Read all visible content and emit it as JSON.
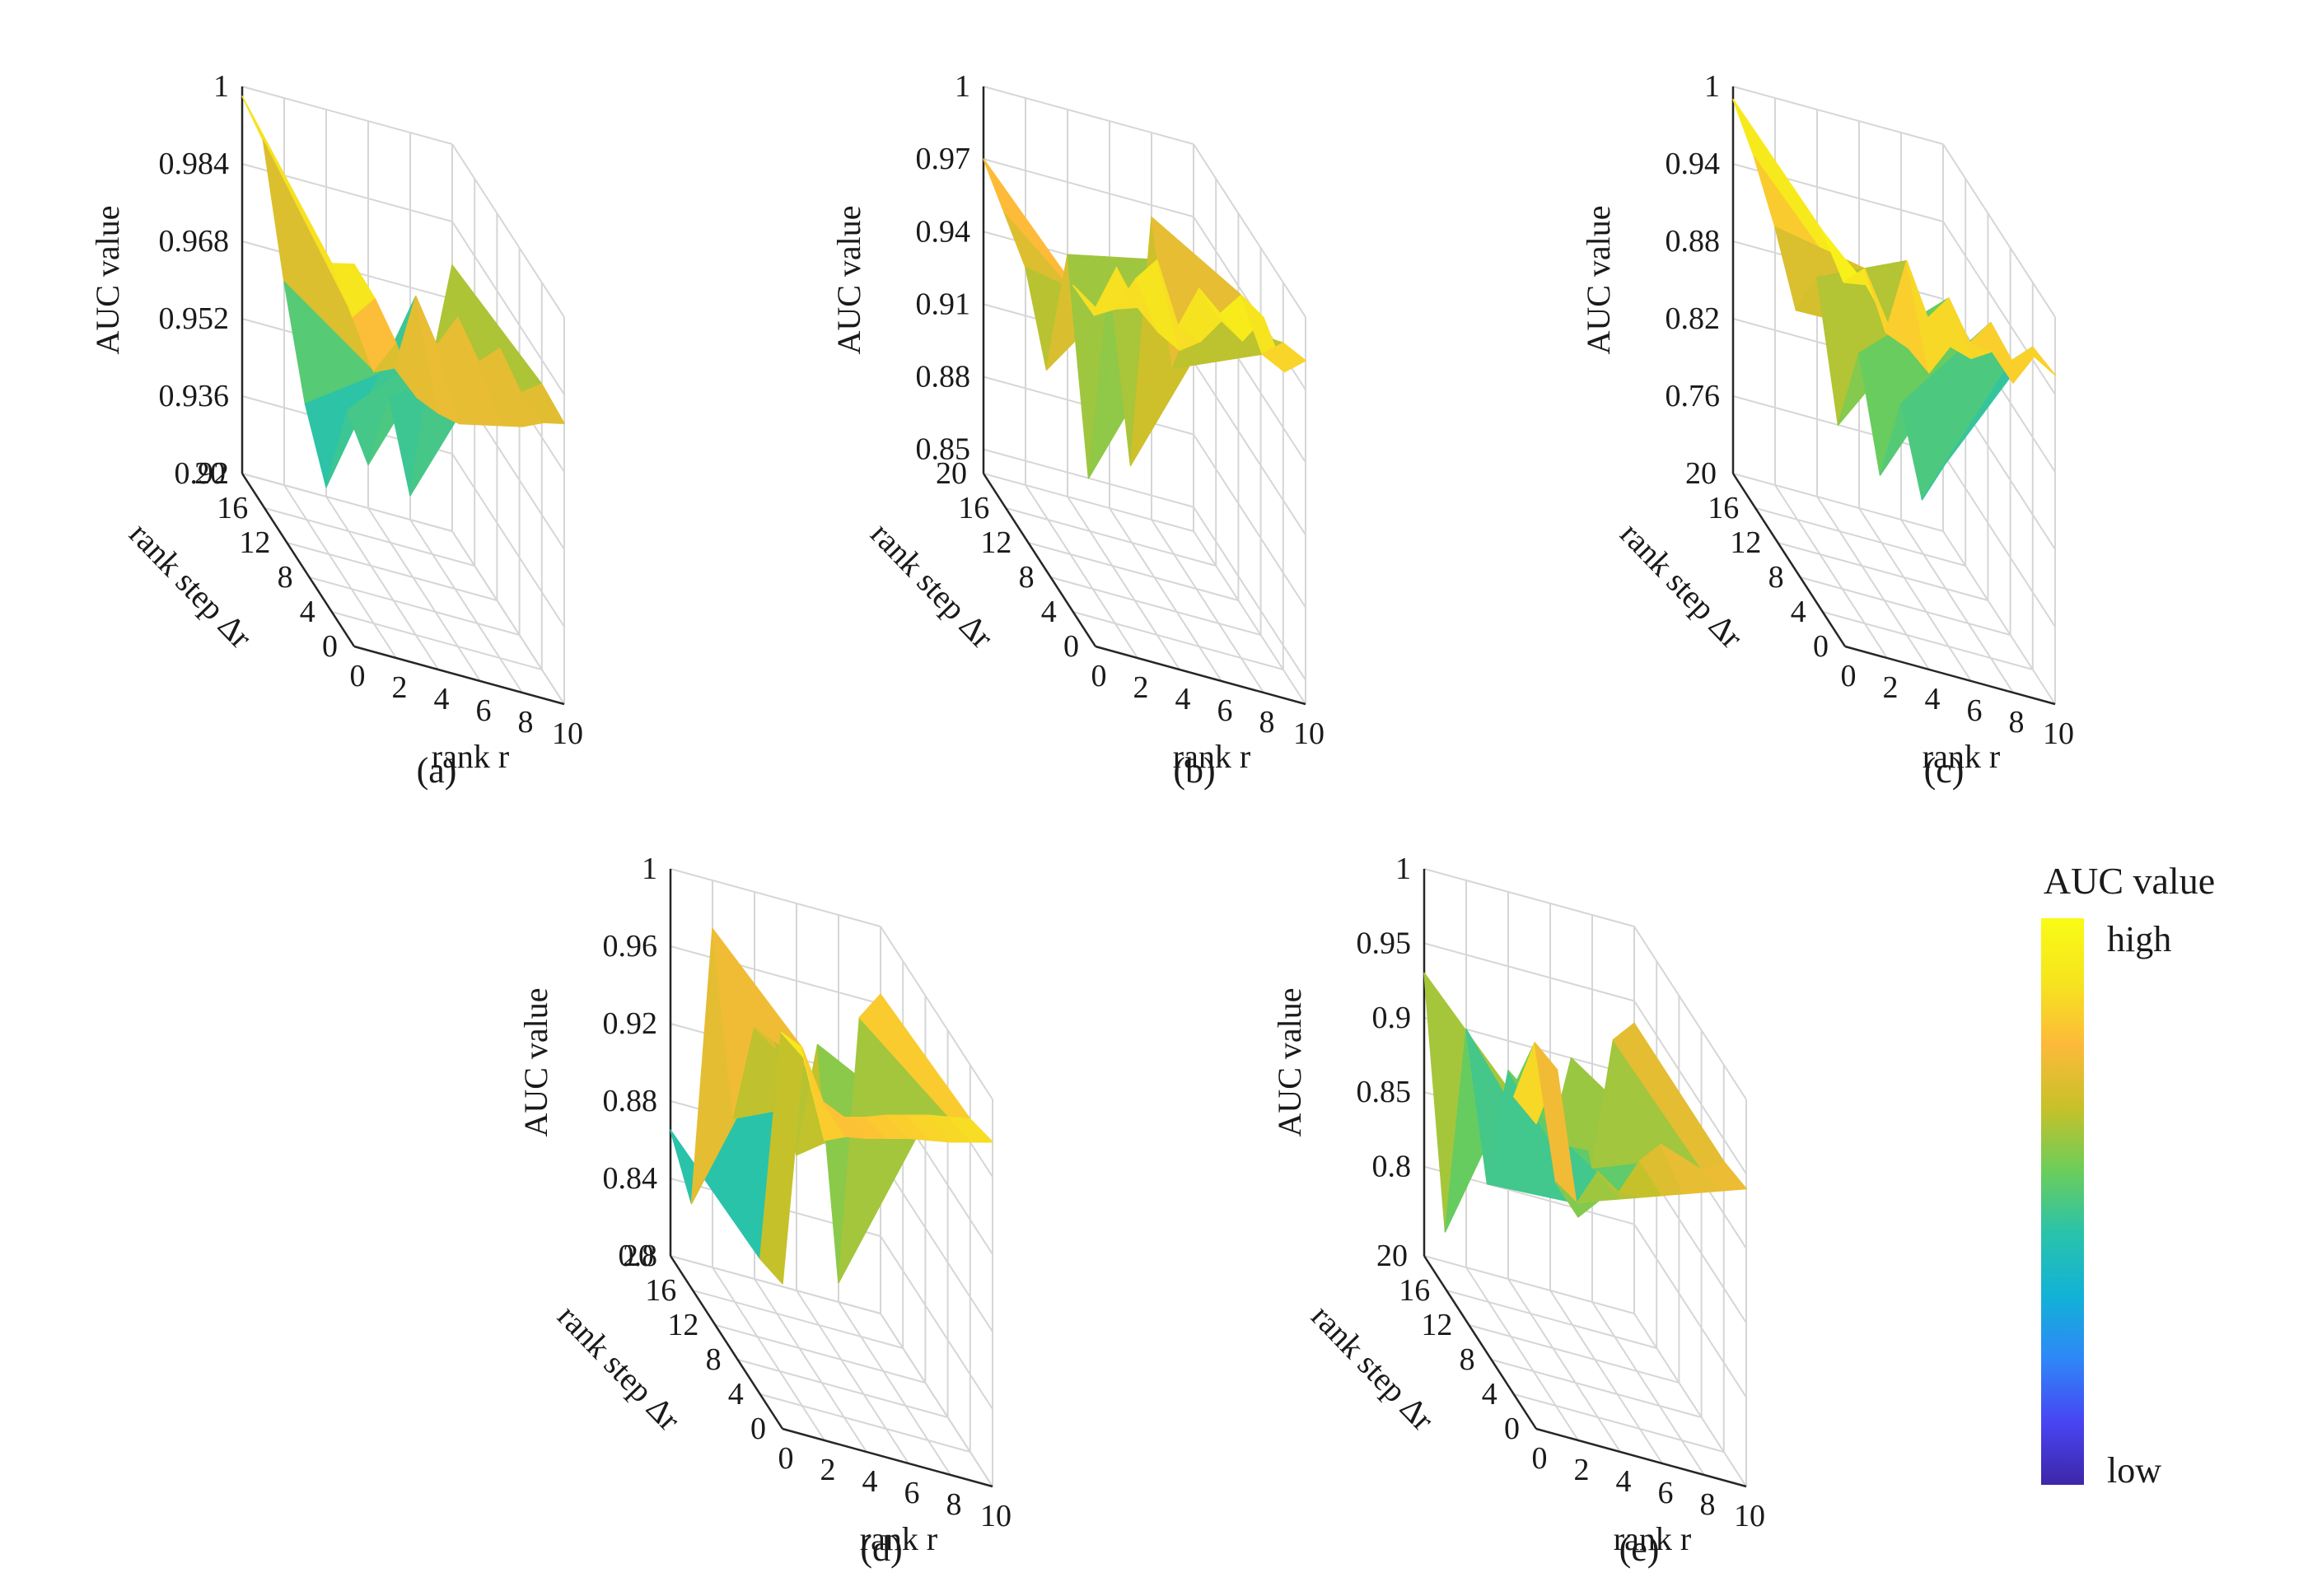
{
  "colormap": [
    "#3e26a8",
    "#4745f3",
    "#2e87f7",
    "#12b2d7",
    "#29c3aa",
    "#6ccd5a",
    "#c8c129",
    "#fdba3a",
    "#f6e51e",
    "#f9fb15"
  ],
  "legend": {
    "title": "AUC value",
    "high": "high",
    "low": "low"
  },
  "chart_data": [
    {
      "panel": "(a)",
      "type": "surface",
      "xlabel": "rank r",
      "ylabel": "rank step ∆r",
      "zlabel": "AUC value",
      "x_ticks": [
        "0",
        "2",
        "4",
        "6",
        "8",
        "10"
      ],
      "y_ticks": [
        "0",
        "4",
        "8",
        "12",
        "16",
        "20"
      ],
      "z_ticks": [
        "0.92",
        "0.936",
        "0.952",
        "0.968",
        "0.984",
        "1"
      ],
      "zlim": [
        0.92,
        1
      ],
      "x": [
        0,
        1,
        2,
        3,
        4,
        5,
        6,
        7,
        8,
        9,
        10
      ],
      "front_edge_dr0": [
        0.999,
        0.993,
        0.985,
        0.975,
        0.973,
        0.972,
        0.973,
        0.974,
        0.975,
        0.977,
        0.978
      ],
      "ridge_dr4": [
        0.992,
        0.982,
        0.972,
        0.974,
        0.99,
        0.981,
        0.988,
        0.98,
        0.984,
        0.976,
        0.979
      ],
      "back_edge_dr20": [
        0.998,
        0.99,
        0.962,
        0.938,
        0.922,
        0.939,
        0.929,
        0.944,
        0.925,
        0.953,
        0.975
      ]
    },
    {
      "panel": "(b)",
      "type": "surface",
      "xlabel": "rank r",
      "ylabel": "rank step ∆r",
      "zlabel": "AUC value",
      "x_ticks": [
        "0",
        "2",
        "4",
        "6",
        "8",
        "10"
      ],
      "y_ticks": [
        "0",
        "4",
        "8",
        "12",
        "16",
        "20"
      ],
      "z_ticks": [
        "0.85",
        "0.88",
        "0.91",
        "0.94",
        "0.97",
        "1"
      ],
      "zlim": [
        0.84,
        1
      ],
      "x": [
        0,
        1,
        2,
        3,
        4,
        5,
        6,
        7,
        8,
        9,
        10
      ],
      "front_edge_dr0": [
        0.98,
        0.999,
        0.985,
        0.977,
        0.972,
        0.978,
        0.989,
        0.983,
        0.995,
        0.975,
        0.982
      ],
      "ridge_dr4": [
        0.975,
        0.965,
        0.97,
        0.985,
        0.995,
        0.97,
        0.988,
        0.98,
        0.99,
        0.968,
        0.975
      ],
      "back_edge_dr20": [
        0.97,
        0.95,
        0.93,
        0.89,
        0.94,
        0.85,
        0.935,
        0.86,
        0.965,
        0.905,
        0.93
      ]
    },
    {
      "panel": "(c)",
      "type": "surface",
      "xlabel": "rank r",
      "ylabel": "rank step ∆r",
      "zlabel": "AUC value",
      "x_ticks": [
        "0",
        "2",
        "4",
        "6",
        "8",
        "10"
      ],
      "y_ticks": [
        "0",
        "4",
        "8",
        "12",
        "16",
        "20"
      ],
      "z_ticks": [
        "0.76",
        "0.82",
        "0.88",
        "0.94",
        "1"
      ],
      "zlim": [
        0.7,
        1
      ],
      "x": [
        0,
        1,
        2,
        3,
        4,
        5,
        6,
        7,
        8,
        9,
        10
      ],
      "front_edge_dr0": [
        1.0,
        0.985,
        0.96,
        0.945,
        0.93,
        0.955,
        0.95,
        0.96,
        0.94,
        0.965,
        0.955
      ],
      "ridge_dr4": [
        0.995,
        0.96,
        0.975,
        0.93,
        0.99,
        0.95,
        0.97,
        0.94,
        0.96,
        0.935,
        0.95
      ],
      "back_edge_dr20": [
        0.99,
        0.95,
        0.9,
        0.84,
        0.87,
        0.76,
        0.82,
        0.73,
        0.79,
        0.72,
        0.75
      ]
    },
    {
      "panel": "(d)",
      "type": "surface",
      "xlabel": "rank r",
      "ylabel": "rank step ∆r",
      "zlabel": "AUC value",
      "x_ticks": [
        "0",
        "2",
        "4",
        "6",
        "8",
        "10"
      ],
      "y_ticks": [
        "0",
        "4",
        "8",
        "12",
        "16",
        "20"
      ],
      "z_ticks": [
        "0.8",
        "0.84",
        "0.88",
        "0.92",
        "0.96",
        "1"
      ],
      "zlim": [
        0.8,
        1
      ],
      "x": [
        0,
        1,
        2,
        3,
        4,
        5,
        6,
        7,
        8,
        9,
        10
      ],
      "front_edge_dr0": [
        0.875,
        0.995,
        0.955,
        0.96,
        0.962,
        0.965,
        0.968,
        0.97,
        0.972,
        0.975,
        0.978
      ],
      "ridge_dr4": [
        0.87,
        0.99,
        0.985,
        0.96,
        0.955,
        0.958,
        0.962,
        0.965,
        0.968,
        0.97,
        0.972
      ],
      "back_edge_dr20": [
        0.865,
        0.83,
        0.975,
        0.88,
        0.93,
        0.925,
        0.87,
        0.93,
        0.81,
        0.95,
        0.965
      ]
    },
    {
      "panel": "(e)",
      "type": "surface",
      "xlabel": "rank r",
      "ylabel": "rank step ∆r",
      "zlabel": "AUC value",
      "x_ticks": [
        "0",
        "2",
        "4",
        "6",
        "8",
        "10"
      ],
      "y_ticks": [
        "0",
        "4",
        "8",
        "12",
        "16",
        "20"
      ],
      "z_ticks": [
        "0.8",
        "0.85",
        "0.9",
        "0.95",
        "1"
      ],
      "zlim": [
        0.74,
        1
      ],
      "x": [
        0,
        1,
        2,
        3,
        4,
        5,
        6,
        7,
        8,
        9,
        10
      ],
      "front_edge_dr0": [
        0.945,
        0.985,
        0.89,
        0.905,
        0.91,
        0.915,
        0.92,
        0.925,
        0.93,
        0.935,
        0.94
      ],
      "ridge_dr4": [
        0.94,
        0.98,
        0.89,
        0.88,
        0.905,
        0.895,
        0.92,
        0.935,
        0.93,
        0.925,
        0.935
      ],
      "back_edge_dr20": [
        0.93,
        0.76,
        0.9,
        0.8,
        0.88,
        0.86,
        0.84,
        0.9,
        0.83,
        0.92,
        0.935
      ]
    }
  ]
}
